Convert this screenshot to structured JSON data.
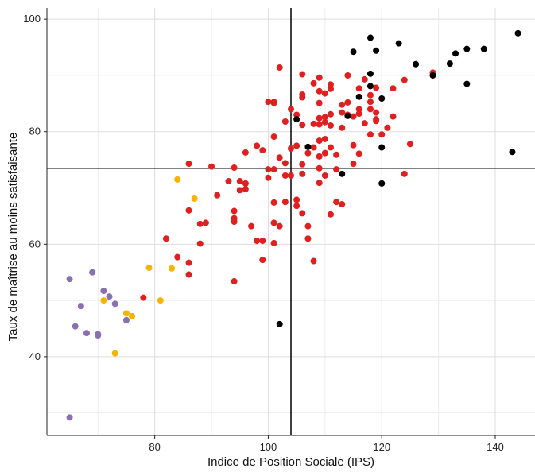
{
  "chart_data": {
    "type": "scatter",
    "xlabel": "Indice de Position Sociale (IPS)",
    "ylabel": "Taux de maîtrise au moins satisfaisante",
    "xlim": [
      61,
      147
    ],
    "ylim": [
      26,
      102
    ],
    "xticks": [
      80,
      100,
      120,
      140
    ],
    "yticks": [
      40,
      60,
      80,
      100
    ],
    "grid": true,
    "legend": "none",
    "reference_lines": {
      "x": 104,
      "y": 73.5
    },
    "colors": {
      "purple": "#8b6fb3",
      "yellow": "#f5b400",
      "red": "#e02020",
      "black": "#000000"
    },
    "series": [
      {
        "color": "#8b6fb3",
        "points": [
          [
            65,
            53.8
          ],
          [
            66,
            45.4
          ],
          [
            67,
            49
          ],
          [
            68,
            44.2
          ],
          [
            69,
            55
          ],
          [
            70,
            44
          ],
          [
            71,
            51.7
          ],
          [
            72,
            50.7
          ],
          [
            73,
            49.4
          ],
          [
            75,
            46.5
          ],
          [
            65,
            29.2
          ],
          [
            70,
            43.8
          ]
        ]
      },
      {
        "color": "#f5b400",
        "points": [
          [
            71,
            50
          ],
          [
            73,
            40.6
          ],
          [
            75,
            47.7
          ],
          [
            76,
            47.2
          ],
          [
            79,
            55.8
          ],
          [
            81,
            50
          ],
          [
            83,
            55.7
          ],
          [
            84,
            71.5
          ],
          [
            87,
            68.1
          ]
        ]
      },
      {
        "color": "#e02020",
        "points": [
          [
            78,
            50.5
          ],
          [
            82,
            61
          ],
          [
            84,
            57.7
          ],
          [
            86,
            74.3
          ],
          [
            86,
            66
          ],
          [
            86,
            56.7
          ],
          [
            86,
            54.6
          ],
          [
            88,
            63.6
          ],
          [
            88,
            60.1
          ],
          [
            89,
            63.8
          ],
          [
            90,
            73.8
          ],
          [
            91,
            68.7
          ],
          [
            93,
            71.2
          ],
          [
            94,
            73.6
          ],
          [
            94,
            65.9
          ],
          [
            94,
            64.6
          ],
          [
            94,
            64
          ],
          [
            94,
            53.4
          ],
          [
            95,
            71.2
          ],
          [
            95,
            69.6
          ],
          [
            96,
            76.3
          ],
          [
            96,
            70.8
          ],
          [
            96,
            69.8
          ],
          [
            97,
            63.2
          ],
          [
            98,
            60.6
          ],
          [
            98,
            77.5
          ],
          [
            99,
            76.7
          ],
          [
            99,
            60.6
          ],
          [
            99,
            57.2
          ],
          [
            100,
            71.8
          ],
          [
            100,
            73.3
          ],
          [
            100,
            85.3
          ],
          [
            101,
            85.1
          ],
          [
            101,
            85.3
          ],
          [
            101,
            79.1
          ],
          [
            101,
            73.3
          ],
          [
            101,
            67.4
          ],
          [
            101,
            63.8
          ],
          [
            101,
            60.2
          ],
          [
            102,
            91.4
          ],
          [
            102,
            75.4
          ],
          [
            102,
            63.2
          ],
          [
            103,
            81.8
          ],
          [
            103,
            74.4
          ],
          [
            103,
            72.2
          ],
          [
            103,
            67.5
          ],
          [
            104,
            84
          ],
          [
            104,
            77
          ],
          [
            104,
            72.2
          ],
          [
            105,
            83
          ],
          [
            105,
            77.5
          ],
          [
            105,
            67.9
          ],
          [
            105,
            66.8
          ],
          [
            106,
            90.2
          ],
          [
            106,
            86.1
          ],
          [
            106,
            86.6
          ],
          [
            106,
            81.2
          ],
          [
            106,
            74.2
          ],
          [
            106,
            72.5
          ],
          [
            106,
            65.5
          ],
          [
            107,
            76.2
          ],
          [
            107,
            63.2
          ],
          [
            107,
            61
          ],
          [
            108,
            88.6
          ],
          [
            108,
            81.4
          ],
          [
            108,
            77.2
          ],
          [
            108,
            57
          ],
          [
            109,
            89.6
          ],
          [
            109,
            87.2
          ],
          [
            109,
            85.1
          ],
          [
            109,
            82.4
          ],
          [
            109,
            81.3
          ],
          [
            109,
            78.4
          ],
          [
            109,
            75.6
          ],
          [
            109,
            73.5
          ],
          [
            109,
            70.9
          ],
          [
            110,
            86.8
          ],
          [
            110,
            82.6
          ],
          [
            110,
            81.7
          ],
          [
            110,
            78.7
          ],
          [
            110,
            76.2
          ],
          [
            110,
            72.2
          ],
          [
            111,
            88.4
          ],
          [
            111,
            87.6
          ],
          [
            111,
            83.1
          ],
          [
            111,
            81.1
          ],
          [
            111,
            77.2
          ],
          [
            111,
            65.3
          ],
          [
            112,
            75.9
          ],
          [
            112,
            73.3
          ],
          [
            112,
            67.5
          ],
          [
            113,
            84.8
          ],
          [
            113,
            83.4
          ],
          [
            113,
            80.7
          ],
          [
            113,
            67.1
          ],
          [
            114,
            90
          ],
          [
            114,
            85.2
          ],
          [
            114,
            83
          ],
          [
            115,
            74.3
          ],
          [
            115,
            77.6
          ],
          [
            115,
            82.7
          ],
          [
            116,
            87.7
          ],
          [
            116,
            84
          ],
          [
            116,
            83.2
          ],
          [
            116,
            76.1
          ],
          [
            117,
            89.3
          ],
          [
            117,
            81.5
          ],
          [
            118,
            86.5
          ],
          [
            118,
            85.3
          ],
          [
            118,
            84
          ],
          [
            118,
            79.5
          ],
          [
            119,
            87.8
          ],
          [
            119,
            83.4
          ],
          [
            119,
            82.2
          ],
          [
            119,
            81.9
          ],
          [
            120,
            79.5
          ],
          [
            121,
            80.7
          ],
          [
            122,
            87.7
          ],
          [
            122,
            82.7
          ],
          [
            124,
            89.2
          ],
          [
            124,
            72.5
          ],
          [
            125,
            77.8
          ],
          [
            129,
            90.5
          ]
        ]
      },
      {
        "color": "#000000",
        "points": [
          [
            102,
            45.8
          ],
          [
            105,
            82.2
          ],
          [
            107,
            77.3
          ],
          [
            113,
            72.5
          ],
          [
            114,
            82.8
          ],
          [
            115,
            94.2
          ],
          [
            116,
            86.2
          ],
          [
            118,
            96.7
          ],
          [
            118,
            90.3
          ],
          [
            118,
            88.1
          ],
          [
            119,
            94.4
          ],
          [
            120,
            85.9
          ],
          [
            120,
            77.2
          ],
          [
            120,
            70.8
          ],
          [
            123,
            95.7
          ],
          [
            126,
            92
          ],
          [
            129,
            90
          ],
          [
            132,
            92.1
          ],
          [
            133,
            93.9
          ],
          [
            135,
            94.7
          ],
          [
            135,
            88.5
          ],
          [
            138,
            94.7
          ],
          [
            143,
            76.4
          ],
          [
            144,
            97.5
          ]
        ]
      }
    ]
  }
}
